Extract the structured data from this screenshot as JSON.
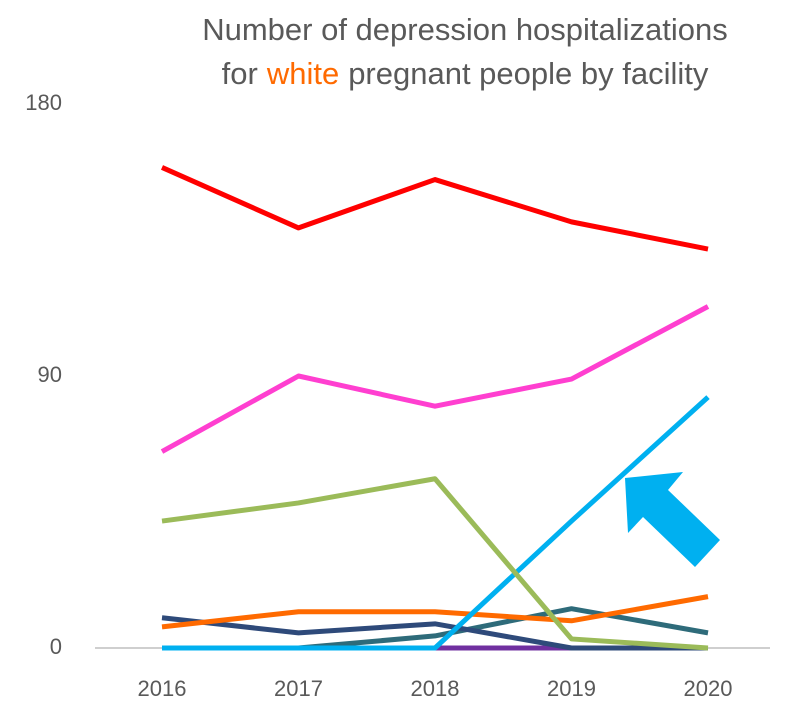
{
  "chart_data": {
    "type": "line",
    "title": {
      "line1": "Number of depression hospitalizations",
      "before": "for",
      "highlight": "white",
      "after": "pregnant people by facility",
      "highlight_color": "#ff6a00"
    },
    "categories": [
      "2016",
      "2017",
      "2018",
      "2019",
      "2020"
    ],
    "ylim": [
      0,
      180
    ],
    "yticks": [
      0,
      90,
      180
    ],
    "grid": false,
    "series": [
      {
        "color": "#ff0000",
        "values": [
          159,
          139,
          155,
          141,
          132
        ]
      },
      {
        "color": "#ff3fd0",
        "values": [
          65,
          90,
          80,
          89,
          113
        ]
      },
      {
        "color": "#9bbb59",
        "values": [
          42,
          48,
          56,
          3,
          0
        ]
      },
      {
        "color": "#00b0f0",
        "values": [
          0,
          0,
          0,
          42,
          83
        ]
      },
      {
        "color": "#ff6a00",
        "values": [
          7,
          12,
          12,
          9,
          17
        ]
      },
      {
        "color": "#2e4a7a",
        "values": [
          10,
          5,
          8,
          0,
          0
        ]
      },
      {
        "color": "#2e6b7a",
        "values": [
          0,
          0,
          4,
          13,
          5
        ]
      },
      {
        "color": "#7030a0",
        "values": [
          0,
          0,
          0,
          0,
          0
        ]
      }
    ]
  }
}
